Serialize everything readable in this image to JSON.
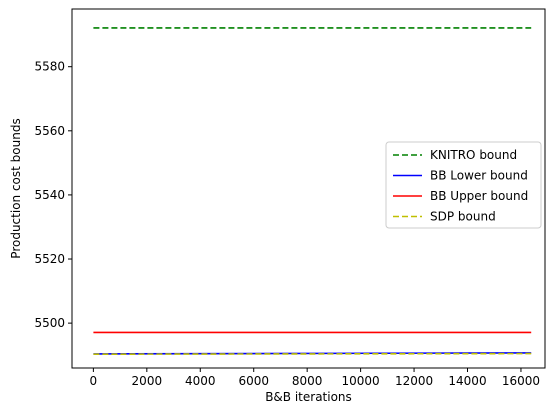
{
  "chart_data": {
    "type": "line",
    "xlabel": "B&B iterations",
    "ylabel": "Production cost bounds",
    "xlim": [
      -800,
      16900
    ],
    "ylim": [
      5486,
      5598
    ],
    "xticks": [
      0,
      2000,
      4000,
      6000,
      8000,
      10000,
      12000,
      14000,
      16000
    ],
    "yticks": [
      5500,
      5520,
      5540,
      5560,
      5580
    ],
    "grid": false,
    "legend_position": "center-right",
    "series": [
      {
        "name": "KNITRO bound",
        "color": "#008000",
        "dash": "dashed",
        "x": [
          0,
          16384
        ],
        "y": [
          5592.1,
          5592.1
        ]
      },
      {
        "name": "BB Lower bound",
        "color": "#0000ff",
        "dash": "solid",
        "x": [
          0,
          16384
        ],
        "y": [
          5490.4,
          5490.7
        ]
      },
      {
        "name": "BB Upper bound",
        "color": "#ff0000",
        "dash": "solid",
        "x": [
          0,
          16384
        ],
        "y": [
          5497.1,
          5497.1
        ]
      },
      {
        "name": "SDP bound",
        "color": "#bfbf00",
        "dash": "dashed",
        "x": [
          0,
          16384
        ],
        "y": [
          5490.3,
          5490.5
        ]
      }
    ]
  }
}
